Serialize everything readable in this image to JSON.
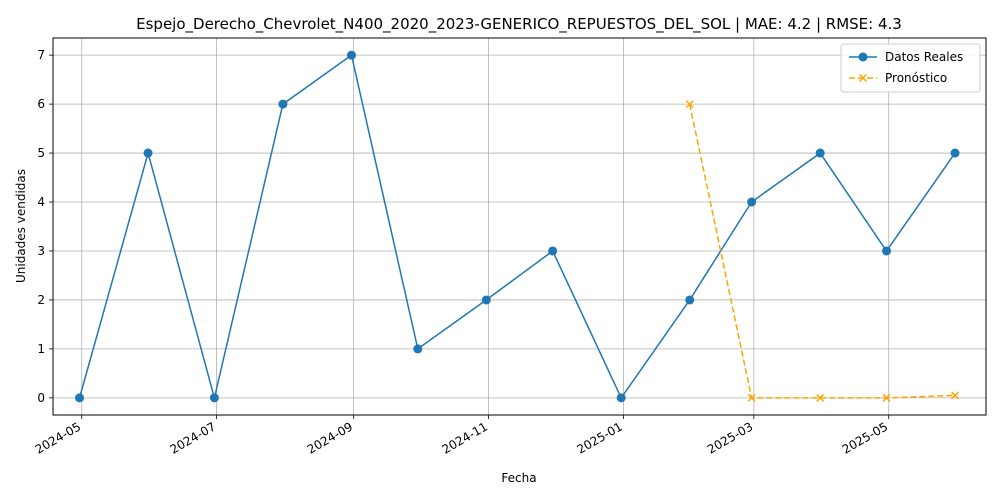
{
  "chart_data": {
    "type": "line",
    "title": "Espejo_Derecho_Chevrolet_N400_2020_2023-GENERICO_REPUESTOS_DEL_SOL | MAE: 4.2 | RMSE: 4.3",
    "xlabel": "Fecha",
    "ylabel": "Unidades vendidas",
    "x_ticks": [
      "2024-05",
      "2024-07",
      "2024-09",
      "2024-11",
      "2025-01",
      "2025-03",
      "2025-05"
    ],
    "y_ticks": [
      0,
      1,
      2,
      3,
      4,
      5,
      6,
      7
    ],
    "ylim": [
      -0.35,
      7.35
    ],
    "xlim": [
      "2024-04-18",
      "2025-06-14"
    ],
    "grid": true,
    "legend_position": "top-right",
    "series": [
      {
        "name": "Datos Reales",
        "color": "#1f77b4",
        "marker": "circle",
        "line_style": "solid",
        "points": [
          {
            "x": "2024-04-30",
            "y": 0
          },
          {
            "x": "2024-05-31",
            "y": 5
          },
          {
            "x": "2024-06-30",
            "y": 0
          },
          {
            "x": "2024-07-31",
            "y": 6
          },
          {
            "x": "2024-08-31",
            "y": 7
          },
          {
            "x": "2024-09-30",
            "y": 1
          },
          {
            "x": "2024-10-31",
            "y": 2
          },
          {
            "x": "2024-11-30",
            "y": 3
          },
          {
            "x": "2024-12-31",
            "y": 0
          },
          {
            "x": "2025-01-31",
            "y": 2
          },
          {
            "x": "2025-02-28",
            "y": 4
          },
          {
            "x": "2025-03-31",
            "y": 5
          },
          {
            "x": "2025-04-30",
            "y": 3
          },
          {
            "x": "2025-05-31",
            "y": 5
          }
        ]
      },
      {
        "name": "Pronóstico",
        "color": "#ffa500",
        "marker": "x",
        "line_style": "dashed",
        "points": [
          {
            "x": "2025-01-31",
            "y": 6
          },
          {
            "x": "2025-02-28",
            "y": 0
          },
          {
            "x": "2025-03-31",
            "y": 0
          },
          {
            "x": "2025-04-30",
            "y": 0
          },
          {
            "x": "2025-05-31",
            "y": 0.05
          }
        ]
      }
    ]
  }
}
